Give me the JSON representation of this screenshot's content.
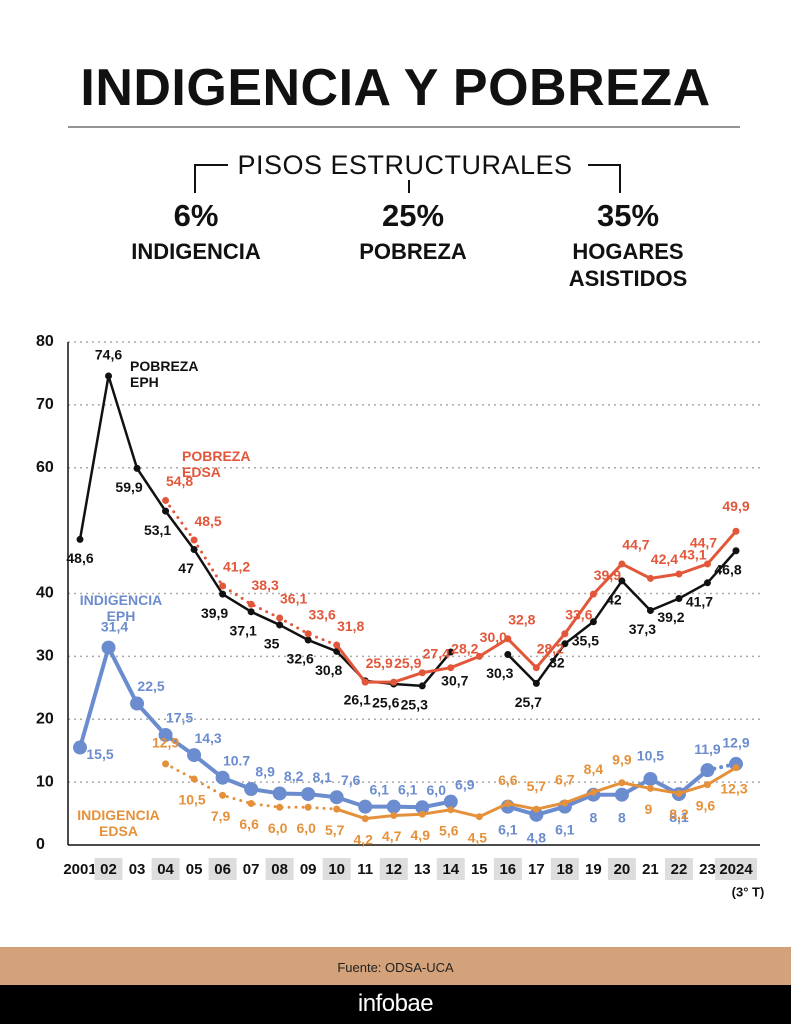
{
  "header": {
    "title": "INDIGENCIA Y POBREZA",
    "subtitle": "PISOS ESTRUCTURALES",
    "stats": [
      {
        "value": "6%",
        "label": "INDIGENCIA"
      },
      {
        "value": "25%",
        "label": "POBREZA"
      },
      {
        "value": "35%",
        "label": "HOGARES ASISTIDOS"
      }
    ]
  },
  "chart_data": {
    "type": "line",
    "categories": [
      "2001",
      "02",
      "03",
      "04",
      "05",
      "06",
      "07",
      "08",
      "09",
      "10",
      "11",
      "12",
      "13",
      "14",
      "15",
      "16",
      "17",
      "18",
      "19",
      "20",
      "21",
      "22",
      "23",
      "2024"
    ],
    "x_note": "(3° T)",
    "ylim": [
      0,
      80
    ],
    "yticks": [
      0,
      10,
      20,
      30,
      40,
      60,
      70,
      80
    ],
    "grid": true,
    "series": [
      {
        "name": "POBREZA EPH",
        "color": "#111111",
        "values": [
          48.6,
          74.6,
          59.9,
          53.1,
          47,
          39.9,
          37.1,
          35,
          32.6,
          30.8,
          26.1,
          25.6,
          25.3,
          30.7,
          null,
          30.3,
          25.7,
          32,
          35.5,
          42,
          37.3,
          39.2,
          41.7,
          46.8
        ],
        "value_labels": [
          "48,6",
          "74,6",
          "59,9",
          "53,1",
          "47",
          "39,9",
          "37,1",
          "35",
          "32,6",
          "30,8",
          "26,1",
          "25,6",
          "25,3",
          "30,7",
          null,
          "30,3",
          "25,7",
          "32",
          "35,5",
          "42",
          "37,3",
          "39,2",
          "41,7",
          "46,8"
        ]
      },
      {
        "name": "POBREZA EDSA",
        "color": "#e2573a",
        "dotted_to": 9,
        "values": [
          null,
          null,
          null,
          54.8,
          48.5,
          41.2,
          38.3,
          36.1,
          33.6,
          31.8,
          25.9,
          25.9,
          27.4,
          28.2,
          30.0,
          32.8,
          28.2,
          33.6,
          39.9,
          44.7,
          42.4,
          43.1,
          44.7,
          49.9
        ],
        "value_labels": [
          null,
          null,
          null,
          "54,8",
          "48,5",
          "41,2",
          "38,3",
          "36,1",
          "33,6",
          "31,8",
          "25,9",
          "25,9",
          "27,4",
          "28,2",
          "30,0",
          "32,8",
          "28,2",
          "33,6",
          "39,9",
          "44,7",
          "42,4",
          "43,1",
          "44,7",
          "49,9"
        ]
      },
      {
        "name": "INDIGENCIA EPH",
        "color": "#6b8cce",
        "dotted_from": 22,
        "values": [
          15.5,
          31.4,
          22.5,
          17.5,
          14.3,
          10.7,
          8.9,
          8.2,
          8.1,
          7.6,
          6.1,
          6.1,
          6.0,
          6.9,
          null,
          6.1,
          4.8,
          6.1,
          8,
          8,
          10.5,
          8.1,
          11.9,
          12.9
        ],
        "value_labels": [
          "15,5",
          "31,4",
          "22,5",
          "17,5",
          "14,3",
          "10.7",
          "8,9",
          "8,2",
          "8,1",
          "7,6",
          "6,1",
          "6,1",
          "6,0",
          "6,9",
          null,
          "6,1",
          "4,8",
          "6,1",
          "8",
          "8",
          "10,5",
          "8,1",
          "11,9",
          "12,9"
        ]
      },
      {
        "name": "INDIGENCIA EDSA",
        "color": "#e5913b",
        "dotted_to": 9,
        "values": [
          null,
          null,
          null,
          12.9,
          10.5,
          7.9,
          6.6,
          6.0,
          6.0,
          5.7,
          4.2,
          4.7,
          4.9,
          5.6,
          4.5,
          6.6,
          5.7,
          6.7,
          8.4,
          9.9,
          9,
          8.2,
          9.6,
          12.3
        ],
        "value_labels": [
          null,
          null,
          null,
          "12,9",
          "10,5",
          "7,9",
          "6,6",
          "6,0",
          "6,0",
          "5,7",
          "4,2",
          "4,7",
          "4,9",
          "5,6",
          "4,5",
          "6,6",
          "5,7",
          "6,7",
          "8,4",
          "9,9",
          "9",
          "8,2",
          "9,6",
          "12,3"
        ]
      }
    ]
  },
  "footer": {
    "source": "Fuente: ODSA-UCA",
    "brand": "infobae"
  }
}
